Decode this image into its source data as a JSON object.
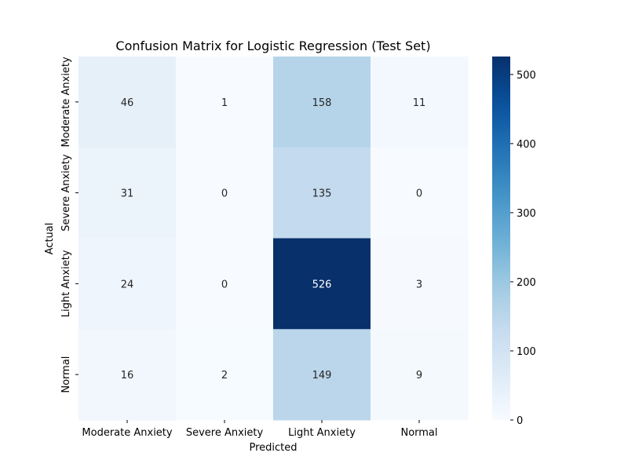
{
  "chart_data": {
    "type": "heatmap",
    "title": "Confusion Matrix for Logistic Regression (Test Set)",
    "xlabel": "Predicted",
    "ylabel": "Actual",
    "x_categories": [
      "Moderate Anxiety",
      "Severe Anxiety",
      "Light Anxiety",
      "Normal"
    ],
    "y_categories": [
      "Moderate Anxiety",
      "Severe Anxiety",
      "Light Anxiety",
      "Normal"
    ],
    "values": [
      [
        46,
        1,
        158,
        11
      ],
      [
        31,
        0,
        135,
        0
      ],
      [
        24,
        0,
        526,
        3
      ],
      [
        16,
        2,
        149,
        9
      ]
    ],
    "colormap": "Blues",
    "vmin": 0,
    "vmax": 526,
    "colorbar_ticks": [
      0,
      100,
      200,
      300,
      400,
      500
    ]
  }
}
